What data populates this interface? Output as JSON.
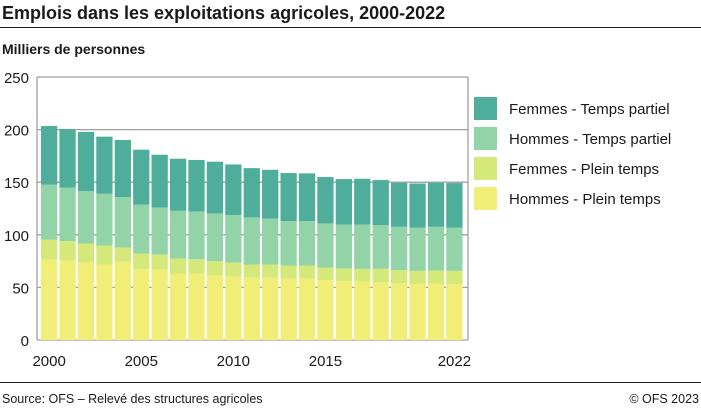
{
  "title": "Emplois dans les exploitations agricoles, 2000-2022",
  "source": "Source: OFS – Relevé des structures agricoles",
  "copyright": "© OFS 2023",
  "chart_data": {
    "type": "bar",
    "stacked": true,
    "ylabel": "Milliers de personnes",
    "ylim": [
      0,
      250
    ],
    "yticks": [
      0,
      50,
      100,
      150,
      200,
      250
    ],
    "xtick_labels": [
      "2000",
      "2005",
      "2010",
      "2015",
      "2022"
    ],
    "grid": true,
    "legend_position": "right",
    "categories": [
      "2000",
      "2001",
      "2002",
      "2003",
      "2004",
      "2005",
      "2006",
      "2007",
      "2008",
      "2009",
      "2010",
      "2011",
      "2012",
      "2013",
      "2014",
      "2015",
      "2016",
      "2017",
      "2018",
      "2019",
      "2020",
      "2021",
      "2022"
    ],
    "series": [
      {
        "name": "Hommes - Plein temps",
        "color": "#f0ee77",
        "values": [
          76.5,
          75.6,
          73.6,
          71.7,
          74.3,
          67.3,
          67.0,
          63.2,
          63.2,
          61.3,
          60.3,
          59.3,
          59.3,
          58.3,
          58.3,
          56.8,
          55.9,
          55.5,
          54.9,
          54.0,
          53.3,
          53.3,
          53.0
        ]
      },
      {
        "name": "Femmes - Plein temps",
        "color": "#d5e87a",
        "values": [
          19.0,
          18.4,
          18.1,
          18.1,
          13.6,
          14.9,
          14.2,
          14.2,
          13.6,
          13.6,
          13.3,
          12.4,
          12.4,
          12.5,
          12.5,
          12.1,
          12.0,
          12.1,
          12.7,
          12.3,
          12.4,
          12.7,
          12.7
        ]
      },
      {
        "name": "Hommes - Temps partiel",
        "color": "#93d3a8",
        "values": [
          52.1,
          50.8,
          49.8,
          49.2,
          47.9,
          46.6,
          44.8,
          45.4,
          45.4,
          45.4,
          45.1,
          44.8,
          43.6,
          42.2,
          42.2,
          41.9,
          41.9,
          42.2,
          41.6,
          41.3,
          41.2,
          41.6,
          41.2
        ]
      },
      {
        "name": "Femmes - Temps partiel",
        "color": "#4fae9b",
        "values": [
          55.8,
          55.7,
          56.3,
          54.3,
          54.3,
          52.1,
          50.1,
          49.5,
          48.9,
          49.2,
          48.2,
          46.9,
          46.5,
          45.7,
          45.4,
          44.1,
          43.2,
          43.5,
          42.8,
          41.9,
          41.9,
          41.9,
          42.3
        ]
      }
    ]
  }
}
